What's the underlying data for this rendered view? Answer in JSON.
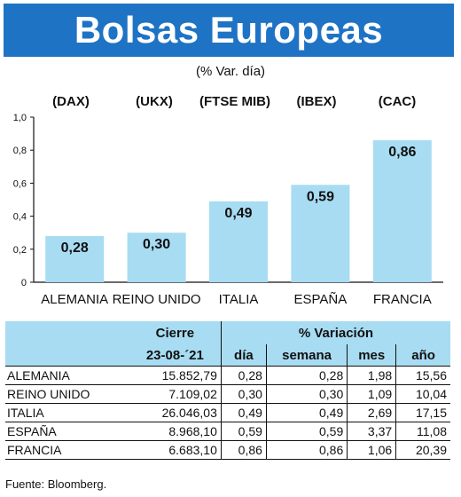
{
  "header": {
    "title": "Bolsas Europeas",
    "subtitle": "(% Var. día)"
  },
  "chart_data": {
    "type": "bar",
    "categories": [
      "ALEMANIA",
      "REINO UNIDO",
      "ITALIA",
      "ESPAÑA",
      "FRANCIA"
    ],
    "index_labels": [
      "(DAX)",
      "(UKX)",
      "(FTSE MIB)",
      "(IBEX)",
      "(CAC)"
    ],
    "values": [
      0.28,
      0.3,
      0.49,
      0.59,
      0.86
    ],
    "value_labels": [
      "0,28",
      "0,30",
      "0,49",
      "0,59",
      "0,86"
    ],
    "yticks": [
      "0",
      "0,2",
      "0,4",
      "0,6",
      "0,8",
      "1,0"
    ],
    "ylim": [
      0,
      1.0
    ],
    "grid": false,
    "bar_color": "#a8dcf2"
  },
  "table": {
    "group_headers": {
      "close": "Cierre",
      "variation": "% Variación"
    },
    "sub_headers": {
      "date": "23-08-´21",
      "day": "día",
      "week": "semana",
      "month": "mes",
      "year": "año"
    },
    "rows": [
      {
        "name": "ALEMANIA",
        "close": "15.852,79",
        "day": "0,28",
        "week": "0,28",
        "month": "1,98",
        "year": "15,56"
      },
      {
        "name": "REINO UNIDO",
        "close": "7.109,02",
        "day": "0,30",
        "week": "0,30",
        "month": "1,09",
        "year": "10,04"
      },
      {
        "name": "ITALIA",
        "close": "26.046,03",
        "day": "0,49",
        "week": "0,49",
        "month": "2,69",
        "year": "17,15"
      },
      {
        "name": "ESPAÑA",
        "close": "8.968,10",
        "day": "0,59",
        "week": "0,59",
        "month": "3,37",
        "year": "11,08"
      },
      {
        "name": "FRANCIA",
        "close": "6.683,10",
        "day": "0,86",
        "week": "0,86",
        "month": "1,06",
        "year": "20,39"
      }
    ]
  },
  "source": "Fuente: Bloomberg."
}
